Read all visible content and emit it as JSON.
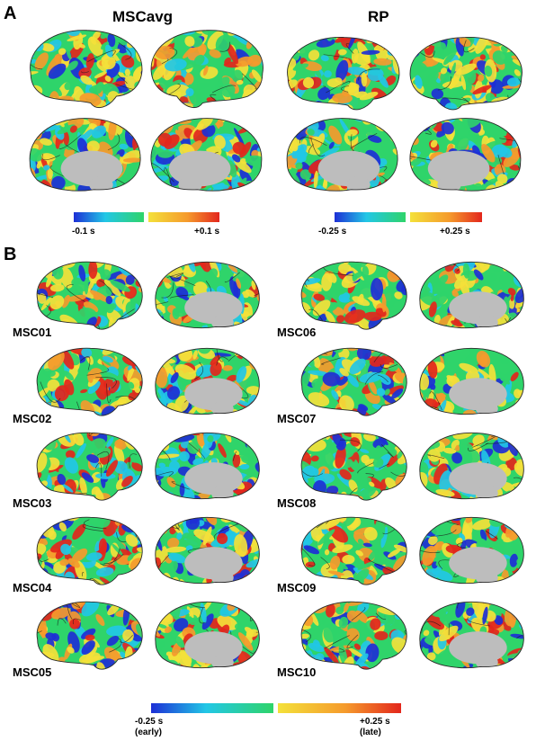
{
  "panel_a": {
    "letter": "A",
    "left_title": "MSCavg",
    "right_title": "RP",
    "left_scale": {
      "min_label": "-0.1 s",
      "max_label": "+0.1 s"
    },
    "right_scale": {
      "min_label": "-0.25 s",
      "max_label": "+0.25 s"
    }
  },
  "panel_b": {
    "letter": "B",
    "subjects": [
      "MSC01",
      "MSC02",
      "MSC03",
      "MSC04",
      "MSC05",
      "MSC06",
      "MSC07",
      "MSC08",
      "MSC09",
      "MSC10"
    ],
    "scale": {
      "min_label": "-0.25 s",
      "min_note": "(early)",
      "max_label": "+0.25 s",
      "max_note": "(late)"
    }
  },
  "colors": {
    "blue": "#1d2fd6",
    "cyan": "#22c7e6",
    "green": "#2fd46a",
    "yellow": "#f4e13a",
    "orange": "#f59a2c",
    "red": "#e3261c",
    "medial_wall": "#bdbdbd"
  }
}
